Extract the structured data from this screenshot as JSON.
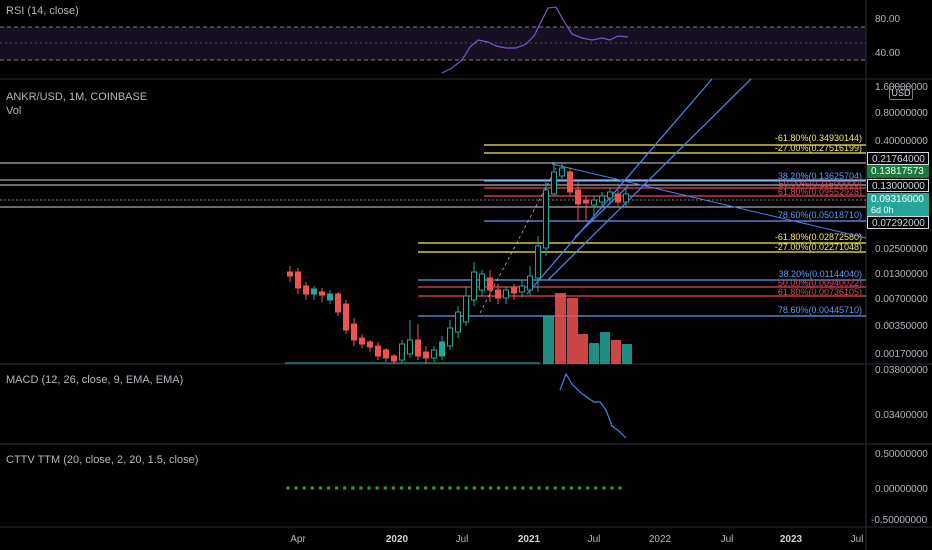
{
  "rsi": {
    "title": "RSI (14, close)",
    "ticks": [
      "80.00",
      "40.00"
    ]
  },
  "main": {
    "symbol": "ANKR/USD, 1M, COINBASE",
    "volume_label": "Vol",
    "axis_ticks": [
      "1.60000000",
      "0.80000000",
      "0.40000000",
      "0.02500000",
      "0.01300000",
      "0.00700000",
      "0.00350000",
      "0.00170000"
    ],
    "currency": "USD",
    "price_tags": [
      {
        "text": "0.21764000",
        "style": "outline"
      },
      {
        "text": "0.13817573",
        "style": "green"
      },
      {
        "text": "0.13000000",
        "style": "outline"
      },
      {
        "text": "0.09316000",
        "style": "teal"
      },
      {
        "text": "6d 0h",
        "style": "teal"
      },
      {
        "text": "0.07292000",
        "style": "outline"
      }
    ],
    "fib_upper": [
      "-61.80%(0.34930144)",
      "-27.00%(0.27516199)",
      "38.20%(0.13625704)",
      "50.00%(0.11500000)",
      "61.80%(0.09552928)",
      "78.60%(0.05018710)"
    ],
    "fib_lower": [
      "-61.80%(0.02872580)",
      "-27.00%(0.02271048)",
      "38.20%(0.01144040)",
      "50.00%(0.00940022)",
      "61.80%(0.00736105)",
      "78.60%(0.00445710)"
    ]
  },
  "macd": {
    "title": "MACD (12, 26, close, 9, EMA, EMA)",
    "ticks": [
      "0.03800000",
      "0.03400000"
    ]
  },
  "cttv": {
    "title": "CTTV TTM (20, close, 2, 20, 1.5, close)",
    "ticks": [
      "0.50000000",
      "0.00000000",
      "-0.50000000"
    ]
  },
  "time_axis": [
    "Apr",
    "2020",
    "Jul",
    "2021",
    "Jul",
    "2022",
    "Jul",
    "2023",
    "Jul"
  ],
  "colors": {
    "up": "#26a69a",
    "down": "#ef5350",
    "fib_yellow": "#f5e960",
    "fib_blue": "#5b9cf6",
    "fib_red": "#e0465a",
    "trend": "#4d7fe8"
  }
}
